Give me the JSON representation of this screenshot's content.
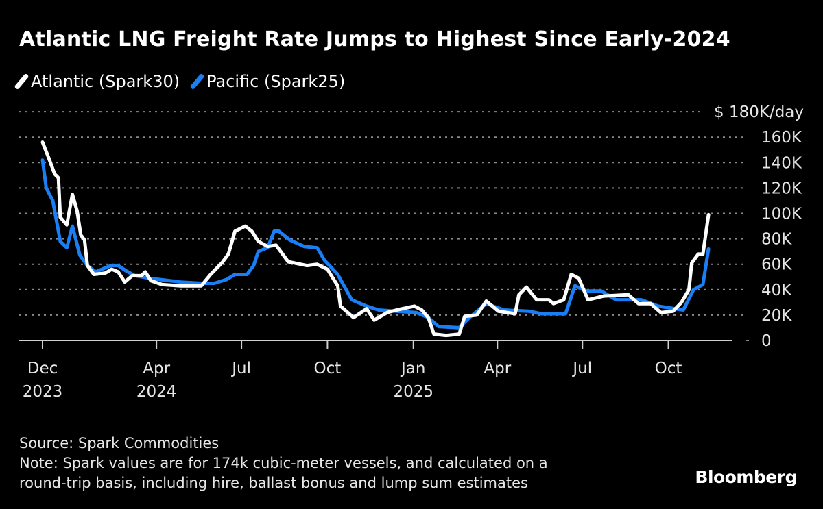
{
  "chart_data": {
    "type": "line",
    "title": "Atlantic LNG Freight Rate Jumps to Highest Since Early-2024",
    "xlabel": "",
    "ylabel": "",
    "y_unit_label": "$ 180K/day",
    "ylim": [
      0,
      180
    ],
    "y_ticks": [
      0,
      20,
      40,
      60,
      80,
      100,
      120,
      140,
      160,
      180
    ],
    "y_tick_labels": [
      "0",
      "20K",
      "40K",
      "60K",
      "80K",
      "100K",
      "120K",
      "140K",
      "160K"
    ],
    "x_ticks": [
      {
        "date": "2023-12-01",
        "line1": "Dec",
        "line2": "2023"
      },
      {
        "date": "2024-04-01",
        "line1": "Apr",
        "line2": "2024"
      },
      {
        "date": "2024-07-01",
        "line1": "Jul",
        "line2": ""
      },
      {
        "date": "2024-10-01",
        "line1": "Oct",
        "line2": ""
      },
      {
        "date": "2025-01-01",
        "line1": "Jan",
        "line2": "2025"
      },
      {
        "date": "2025-04-01",
        "line1": "Apr",
        "line2": ""
      },
      {
        "date": "2025-07-01",
        "line1": "Jul",
        "line2": ""
      },
      {
        "date": "2025-10-01",
        "line1": "Oct",
        "line2": ""
      }
    ],
    "grid": true,
    "legend_position": "top-left",
    "series": [
      {
        "name": "Atlantic (Spark30)",
        "color": "#ffffff",
        "points": [
          [
            "2023-12-01",
            156
          ],
          [
            "2023-12-08",
            143
          ],
          [
            "2023-12-14",
            131
          ],
          [
            "2023-12-18",
            128
          ],
          [
            "2023-12-20",
            97
          ],
          [
            "2023-12-27",
            91
          ],
          [
            "2024-01-02",
            115
          ],
          [
            "2024-01-07",
            102
          ],
          [
            "2024-01-11",
            83
          ],
          [
            "2024-01-15",
            79
          ],
          [
            "2024-01-18",
            59
          ],
          [
            "2024-01-25",
            52
          ],
          [
            "2024-02-06",
            53
          ],
          [
            "2024-02-13",
            56
          ],
          [
            "2024-02-20",
            54
          ],
          [
            "2024-02-27",
            46
          ],
          [
            "2024-03-06",
            51
          ],
          [
            "2024-03-16",
            51
          ],
          [
            "2024-03-20",
            54
          ],
          [
            "2024-03-26",
            47
          ],
          [
            "2024-04-07",
            44
          ],
          [
            "2024-04-27",
            43
          ],
          [
            "2024-05-19",
            43
          ],
          [
            "2024-05-29",
            52
          ],
          [
            "2024-06-10",
            61
          ],
          [
            "2024-06-17",
            68
          ],
          [
            "2024-06-24",
            86
          ],
          [
            "2024-07-05",
            90
          ],
          [
            "2024-07-12",
            86
          ],
          [
            "2024-07-19",
            78
          ],
          [
            "2024-07-29",
            74
          ],
          [
            "2024-08-07",
            75
          ],
          [
            "2024-08-20",
            62
          ],
          [
            "2024-09-09",
            59
          ],
          [
            "2024-09-20",
            60
          ],
          [
            "2024-10-01",
            56
          ],
          [
            "2024-10-12",
            43
          ],
          [
            "2024-10-15",
            27
          ],
          [
            "2024-10-29",
            18
          ],
          [
            "2024-11-12",
            25
          ],
          [
            "2024-11-20",
            16
          ],
          [
            "2024-12-04",
            22
          ],
          [
            "2024-12-14",
            24
          ],
          [
            "2025-01-02",
            27
          ],
          [
            "2025-01-10",
            24
          ],
          [
            "2025-01-17",
            18
          ],
          [
            "2025-01-23",
            5
          ],
          [
            "2025-02-05",
            4
          ],
          [
            "2025-02-19",
            5
          ],
          [
            "2025-02-25",
            19
          ],
          [
            "2025-03-10",
            20
          ],
          [
            "2025-03-20",
            31
          ],
          [
            "2025-04-02",
            23
          ],
          [
            "2025-04-20",
            21
          ],
          [
            "2025-04-24",
            36
          ],
          [
            "2025-05-02",
            42
          ],
          [
            "2025-05-13",
            32
          ],
          [
            "2025-05-26",
            32
          ],
          [
            "2025-05-31",
            29
          ],
          [
            "2025-06-11",
            32
          ],
          [
            "2025-06-19",
            52
          ],
          [
            "2025-06-27",
            49
          ],
          [
            "2025-07-07",
            32
          ],
          [
            "2025-07-24",
            35
          ],
          [
            "2025-08-19",
            36
          ],
          [
            "2025-08-30",
            29
          ],
          [
            "2025-09-12",
            29
          ],
          [
            "2025-09-23",
            22
          ],
          [
            "2025-10-06",
            23
          ],
          [
            "2025-10-15",
            30
          ],
          [
            "2025-10-23",
            40
          ],
          [
            "2025-10-26",
            61
          ],
          [
            "2025-11-02",
            68
          ],
          [
            "2025-11-07",
            68
          ],
          [
            "2025-11-13",
            99
          ]
        ]
      },
      {
        "name": "Pacific (Spark25)",
        "color": "#1a7ef5",
        "points": [
          [
            "2023-12-01",
            142
          ],
          [
            "2023-12-05",
            120
          ],
          [
            "2023-12-12",
            110
          ],
          [
            "2023-12-20",
            78
          ],
          [
            "2023-12-27",
            73
          ],
          [
            "2024-01-02",
            90
          ],
          [
            "2024-01-10",
            67
          ],
          [
            "2024-01-18",
            59
          ],
          [
            "2024-01-27",
            54
          ],
          [
            "2024-02-09",
            58
          ],
          [
            "2024-02-13",
            59
          ],
          [
            "2024-02-20",
            59
          ],
          [
            "2024-02-28",
            55
          ],
          [
            "2024-03-09",
            51
          ],
          [
            "2024-03-24",
            49
          ],
          [
            "2024-04-27",
            46
          ],
          [
            "2024-05-19",
            45
          ],
          [
            "2024-06-02",
            45
          ],
          [
            "2024-06-15",
            48
          ],
          [
            "2024-06-24",
            52
          ],
          [
            "2024-07-07",
            52
          ],
          [
            "2024-07-14",
            59
          ],
          [
            "2024-07-19",
            70
          ],
          [
            "2024-07-29",
            73
          ],
          [
            "2024-08-05",
            86
          ],
          [
            "2024-08-10",
            86
          ],
          [
            "2024-08-22",
            79
          ],
          [
            "2024-09-06",
            74
          ],
          [
            "2024-09-20",
            73
          ],
          [
            "2024-09-28",
            63
          ],
          [
            "2024-10-12",
            52
          ],
          [
            "2024-10-27",
            32
          ],
          [
            "2024-11-12",
            27
          ],
          [
            "2024-11-25",
            24
          ],
          [
            "2025-01-04",
            22
          ],
          [
            "2025-01-17",
            18
          ],
          [
            "2025-01-28",
            11
          ],
          [
            "2025-02-19",
            10
          ],
          [
            "2025-03-02",
            18
          ],
          [
            "2025-03-20",
            29
          ],
          [
            "2025-04-08",
            24
          ],
          [
            "2025-05-05",
            23
          ],
          [
            "2025-05-18",
            21
          ],
          [
            "2025-06-13",
            21
          ],
          [
            "2025-06-23",
            43
          ],
          [
            "2025-07-05",
            39
          ],
          [
            "2025-07-21",
            39
          ],
          [
            "2025-08-06",
            32
          ],
          [
            "2025-09-02",
            32
          ],
          [
            "2025-09-20",
            27
          ],
          [
            "2025-10-17",
            24
          ],
          [
            "2025-10-28",
            40
          ],
          [
            "2025-11-07",
            44
          ],
          [
            "2025-11-13",
            72
          ]
        ]
      }
    ]
  },
  "footer": {
    "source": "Source: Spark Commodities",
    "note_line1": "Note: Spark values are for 174k cubic-meter vessels, and calculated on a",
    "note_line2": "round-trip basis, including hire, ballast bonus and lump sum estimates",
    "logo": "Bloomberg"
  }
}
